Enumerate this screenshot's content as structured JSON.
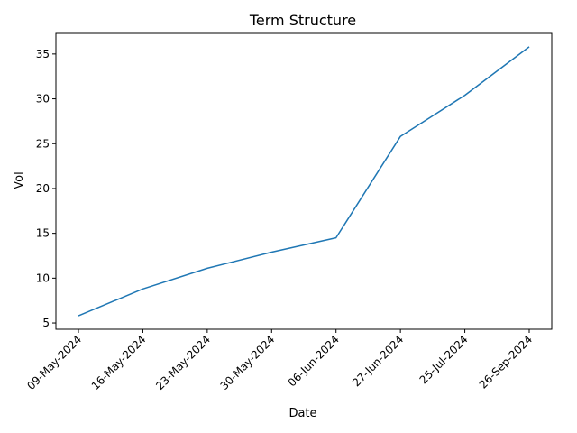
{
  "chart_data": {
    "type": "line",
    "title": "Term Structure",
    "xlabel": "Date",
    "ylabel": "Vol",
    "categories": [
      "09-May-2024",
      "16-May-2024",
      "23-May-2024",
      "30-May-2024",
      "06-Jun-2024",
      "27-Jun-2024",
      "25-Jul-2024",
      "26-Sep-2024"
    ],
    "series": [
      {
        "values": [
          5.8,
          8.8,
          11.1,
          12.9,
          14.5,
          25.8,
          30.4,
          35.8
        ],
        "color": "#1f77b4"
      }
    ],
    "ylim": [
      4.3,
      37.3
    ],
    "yticks": [
      5,
      10,
      15,
      20,
      25,
      30,
      35
    ],
    "grid": false,
    "legend": "none"
  }
}
